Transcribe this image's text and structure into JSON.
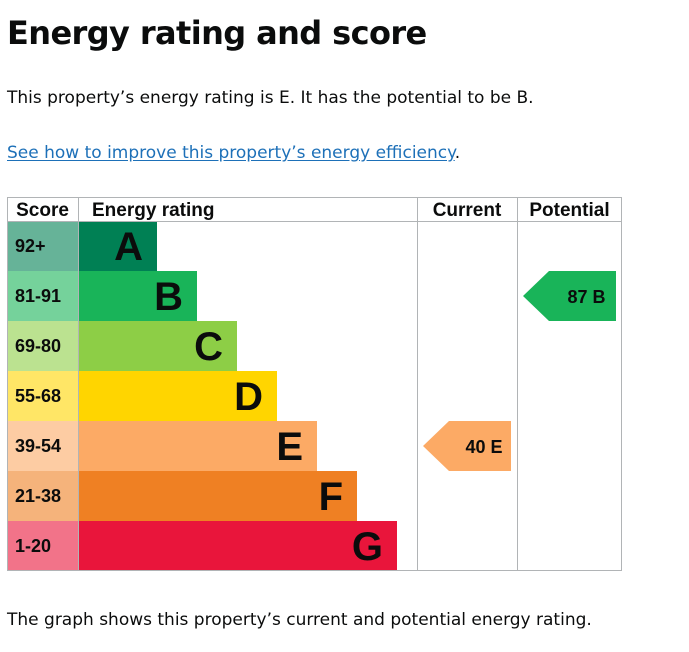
{
  "page": {
    "heading": "Energy rating and score",
    "summary": "This property’s energy rating is E. It has the potential to be B.",
    "link_text": "See how to improve this property’s energy efficiency",
    "link_suffix": ".",
    "footer": "The graph shows this property’s current and potential energy rating."
  },
  "chart_data": {
    "type": "bar",
    "columns": [
      "Score",
      "Energy rating",
      "Current",
      "Potential"
    ],
    "bands": [
      {
        "score": "92+",
        "letter": "A",
        "color": "#008054",
        "score_bg": "#66b398"
      },
      {
        "score": "81-91",
        "letter": "B",
        "color": "#19b459",
        "score_bg": "#75d29b"
      },
      {
        "score": "69-80",
        "letter": "C",
        "color": "#8dce46",
        "score_bg": "#bbe290"
      },
      {
        "score": "55-68",
        "letter": "D",
        "color": "#ffd500",
        "score_bg": "#ffe666"
      },
      {
        "score": "39-54",
        "letter": "E",
        "color": "#fcaa65",
        "score_bg": "#fdcca3"
      },
      {
        "score": "21-38",
        "letter": "F",
        "color": "#ef8023",
        "score_bg": "#f5b37b"
      },
      {
        "score": "1-20",
        "letter": "G",
        "color": "#e9153b",
        "score_bg": "#f27389"
      }
    ],
    "current": {
      "value": 40,
      "letter": "E",
      "label": "40 E",
      "color": "#fcaa65"
    },
    "potential": {
      "value": 87,
      "letter": "B",
      "label": "87 B",
      "color": "#19b459"
    }
  }
}
